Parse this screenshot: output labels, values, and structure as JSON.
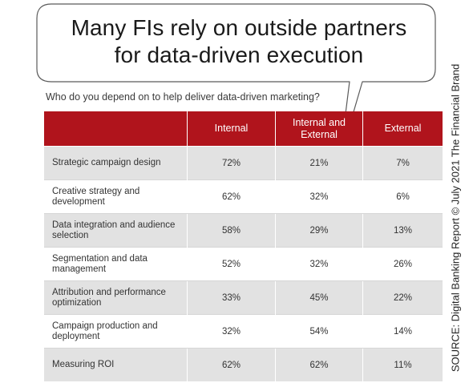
{
  "chart_data": {
    "type": "table",
    "title": [
      "Many FIs rely on outside partners",
      "for data-driven execution"
    ],
    "question": "Who do you depend on to help deliver data-driven marketing?",
    "columns": [
      "Internal",
      "Internal and External",
      "External"
    ],
    "rows": [
      {
        "label": "Strategic campaign design",
        "values": [
          "72%",
          "21%",
          "7%"
        ]
      },
      {
        "label": "Creative strategy and development",
        "values": [
          "62%",
          "32%",
          "6%"
        ]
      },
      {
        "label": "Data integration and audience selection",
        "values": [
          "58%",
          "29%",
          "13%"
        ]
      },
      {
        "label": "Segmentation and data management",
        "values": [
          "52%",
          "32%",
          "26%"
        ]
      },
      {
        "label": "Attribution and performance optimization",
        "values": [
          "33%",
          "45%",
          "22%"
        ]
      },
      {
        "label": "Campaign production and deployment",
        "values": [
          "32%",
          "54%",
          "14%"
        ]
      },
      {
        "label": "Measuring ROI",
        "values": [
          "62%",
          "62%",
          "11%"
        ]
      }
    ],
    "source": "SOURCE: Digital Banking Report © July 2021 The Financial Brand"
  },
  "colors": {
    "header_red": "#b0141c",
    "row_shade": "#e2e2e2"
  }
}
